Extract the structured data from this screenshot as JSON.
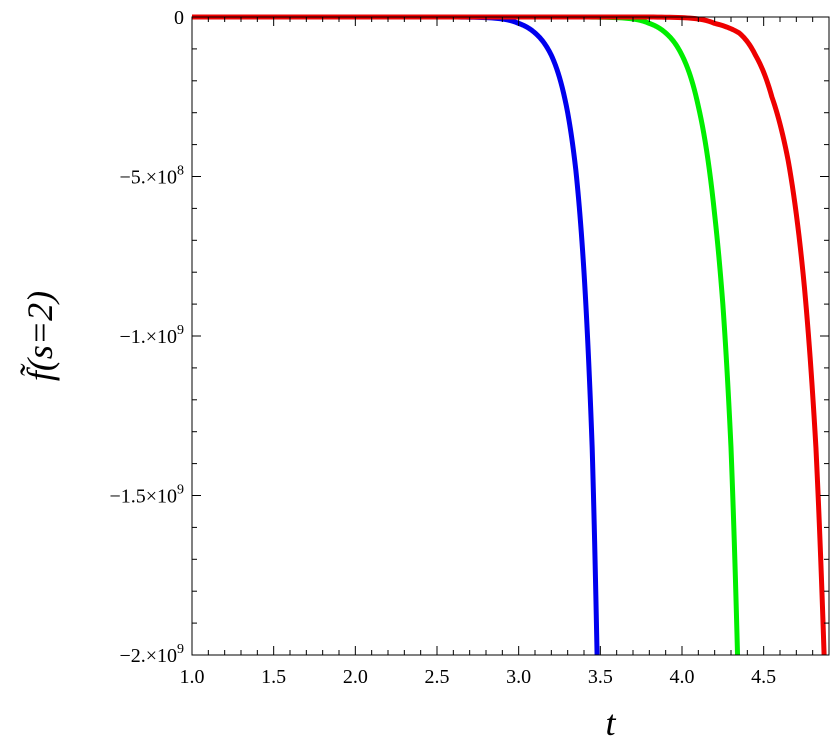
{
  "chart_data": {
    "type": "line",
    "title": "",
    "xlabel": "t",
    "ylabel": "f̃(s=2)",
    "xlim": [
      1.0,
      4.9
    ],
    "ylim": [
      -2000000000,
      0
    ],
    "grid": false,
    "legend": "none",
    "x_ticks": [
      {
        "value": 1.0,
        "label": "1.0"
      },
      {
        "value": 1.5,
        "label": "1.5"
      },
      {
        "value": 2.0,
        "label": "2.0"
      },
      {
        "value": 2.5,
        "label": "2.5"
      },
      {
        "value": 3.0,
        "label": "3.0"
      },
      {
        "value": 3.5,
        "label": "3.5"
      },
      {
        "value": 4.0,
        "label": "4.0"
      },
      {
        "value": 4.5,
        "label": "4.5"
      }
    ],
    "y_ticks": [
      {
        "value": 0,
        "label": "0"
      },
      {
        "value": -500000000,
        "label": "−5.×10",
        "exp": "8"
      },
      {
        "value": -1000000000,
        "label": "−1.×10",
        "exp": "9"
      },
      {
        "value": -1500000000,
        "label": "−1.5×10",
        "exp": "9"
      },
      {
        "value": -2000000000,
        "label": "−2.×10",
        "exp": "9"
      }
    ],
    "series": [
      {
        "color": "#0000ee",
        "t_end": 3.48,
        "x": [
          1.0,
          2.5,
          2.8,
          3.0,
          3.1,
          3.2,
          3.3,
          3.35,
          3.4,
          3.45,
          3.48
        ],
        "y": [
          0,
          0,
          -2000000,
          -20000000,
          -50000000,
          -120000000,
          -300000000,
          -480000000,
          -800000000,
          -1350000000,
          -2000000000
        ]
      },
      {
        "color": "#00ee00",
        "t_end": 4.34,
        "x": [
          1.0,
          3.3,
          3.6,
          3.8,
          3.9,
          4.0,
          4.1,
          4.2,
          4.25,
          4.3,
          4.34
        ],
        "y": [
          0,
          0,
          -2000000,
          -20000000,
          -50000000,
          -120000000,
          -280000000,
          -620000000,
          -900000000,
          -1350000000,
          -2000000000
        ]
      },
      {
        "color": "#ee0000",
        "t_end": 4.87,
        "x": [
          1.0,
          3.7,
          4.0,
          4.2,
          4.35,
          4.45,
          4.55,
          4.65,
          4.75,
          4.82,
          4.87
        ],
        "y": [
          0,
          0,
          -2000000,
          -20000000,
          -50000000,
          -120000000,
          -250000000,
          -450000000,
          -850000000,
          -1350000000,
          -2000000000
        ]
      }
    ]
  }
}
